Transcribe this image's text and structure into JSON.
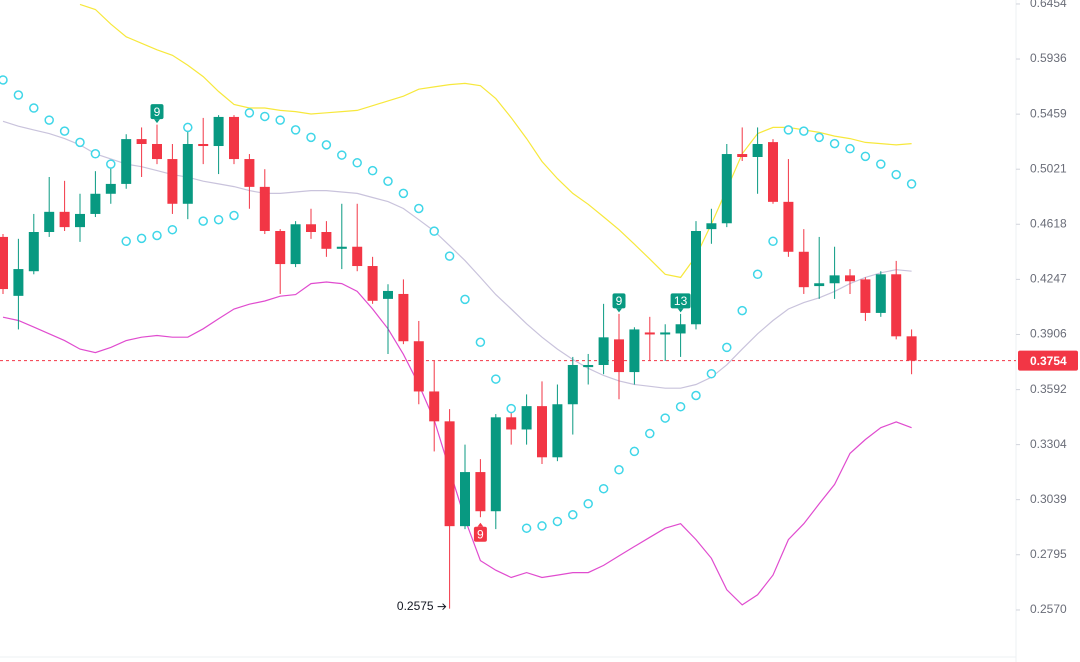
{
  "chart_data": {
    "type": "candlestick",
    "log_scale": true,
    "ylim": [
      0.24,
      0.6493
    ],
    "yticks": [
      0.6454,
      0.5936,
      0.5459,
      0.5021,
      0.4618,
      0.4247,
      0.3906,
      0.3592,
      0.3304,
      0.3039,
      0.2795,
      {
        "value": 0.257,
        "label": "0.2570"
      }
    ],
    "up_color": "#089981",
    "down_color": "#f23645",
    "open": [
      0.453,
      0.4142,
      0.43,
      0.4564,
      0.4706,
      0.4598,
      0.4691,
      0.4837,
      0.491,
      0.5256,
      0.5217,
      0.5099,
      0.4764,
      0.5217,
      0.5201,
      0.5436,
      0.5099,
      0.4888,
      0.4571,
      0.4347,
      0.4618,
      0.4564,
      0.4449,
      0.4463,
      0.4334,
      0.4123,
      0.4154,
      0.3866,
      0.3582,
      0.3423,
      0.2919,
      0.3169,
      0.2986,
      0.3444,
      0.3381,
      0.3503,
      0.3241,
      0.3513,
      0.3717,
      0.3729,
      0.3877,
      0.3689,
      0.3918,
      0.3906,
      0.3912,
      0.3967,
      0.4584,
      0.4625,
      0.5138,
      0.5115,
      0.5232,
      0.4778,
      0.4429,
      0.4204,
      0.4222,
      0.4273,
      0.4247,
      0.4036,
      0.428,
      0.3895
    ],
    "high": [
      0.455,
      0.4517,
      0.4691,
      0.4962,
      0.4933,
      0.4837,
      0.5006,
      0.5084,
      0.5295,
      0.535,
      0.5373,
      0.5217,
      0.5373,
      0.5428,
      0.5451,
      0.5451,
      0.5138,
      0.5021,
      0.4584,
      0.464,
      0.4728,
      0.464,
      0.4764,
      0.4764,
      0.4395,
      0.4216,
      0.4247,
      0.3987,
      0.3752,
      0.3487,
      0.3304,
      0.3232,
      0.3461,
      0.3513,
      0.3566,
      0.3637,
      0.362,
      0.3775,
      0.3792,
      0.4092,
      0.403,
      0.3949,
      0.4012,
      0.3967,
      0.403,
      0.464,
      0.4728,
      0.5217,
      0.535,
      0.535,
      0.5256,
      0.5099,
      0.4584,
      0.453,
      0.4463,
      0.4314,
      0.426,
      0.43,
      0.4368,
      0.3936
    ],
    "low": [
      0.4154,
      0.3936,
      0.428,
      0.453,
      0.4571,
      0.4496,
      0.4669,
      0.4764,
      0.4874,
      0.4962,
      0.506,
      0.4691,
      0.4654,
      0.506,
      0.4984,
      0.506,
      0.4728,
      0.455,
      0.4154,
      0.4327,
      0.4517,
      0.4395,
      0.4314,
      0.43,
      0.4092,
      0.3792,
      0.3849,
      0.3513,
      0.327,
      0.2575,
      0.2906,
      0.2959,
      0.2906,
      0.3304,
      0.3304,
      0.3208,
      0.3222,
      0.3355,
      0.362,
      0.3677,
      0.354,
      0.362,
      0.3752,
      0.3752,
      0.3775,
      0.3936,
      0.4483,
      0.4598,
      0.5084,
      0.4837,
      0.4764,
      0.4395,
      0.4154,
      0.4123,
      0.4123,
      0.4154,
      0.3987,
      0.4012,
      0.3877,
      0.3677
    ],
    "close": [
      0.4185,
      0.4314,
      0.4564,
      0.4706,
      0.4598,
      0.4691,
      0.4837,
      0.491,
      0.5256,
      0.5217,
      0.5099,
      0.4764,
      0.5217,
      0.5201,
      0.5436,
      0.5099,
      0.4888,
      0.4571,
      0.4347,
      0.4618,
      0.4564,
      0.4449,
      0.4463,
      0.4334,
      0.4111,
      0.4173,
      0.3866,
      0.3582,
      0.3423,
      0.2919,
      0.3169,
      0.2986,
      0.3444,
      0.3381,
      0.3503,
      0.3241,
      0.3513,
      0.3729,
      0.3729,
      0.3889,
      0.3689,
      0.3936,
      0.3906,
      0.3918,
      0.3967,
      0.4571,
      0.4625,
      0.5138,
      0.5115,
      0.5217,
      0.4778,
      0.4429,
      0.4197,
      0.4222,
      0.4273,
      0.4235,
      0.4036,
      0.428,
      0.3895,
      0.3754
    ],
    "upper_band": {
      "color": "#f7e83c",
      "values": [
        null,
        null,
        null,
        null,
        null,
        0.645,
        0.64,
        0.626,
        0.614,
        0.608,
        0.602,
        0.597,
        0.588,
        0.578,
        0.565,
        0.554,
        0.551,
        0.551,
        0.549,
        0.548,
        0.546,
        0.547,
        0.548,
        0.549,
        0.553,
        0.557,
        0.561,
        0.567,
        0.569,
        0.571,
        0.572,
        0.57,
        0.559,
        0.543,
        0.526,
        0.508,
        0.495,
        0.484,
        0.476,
        0.467,
        0.458,
        0.448,
        0.438,
        0.428,
        0.426,
        0.44,
        0.462,
        0.487,
        0.514,
        0.53,
        0.535,
        0.535,
        0.533,
        0.531,
        0.528,
        0.526,
        0.523,
        0.522,
        0.521,
        0.522
      ]
    },
    "middle_band": {
      "color": "#c9c3dc",
      "values": [
        0.54,
        0.536,
        0.533,
        0.53,
        0.526,
        0.521,
        0.514,
        0.51,
        0.506,
        0.504,
        0.501,
        0.498,
        0.496,
        0.493,
        0.491,
        0.489,
        0.486,
        0.484,
        0.484,
        0.485,
        0.486,
        0.486,
        0.485,
        0.484,
        0.481,
        0.478,
        0.473,
        0.465,
        0.457,
        0.447,
        0.437,
        0.426,
        0.415,
        0.406,
        0.397,
        0.389,
        0.382,
        0.376,
        0.371,
        0.367,
        0.364,
        0.362,
        0.361,
        0.36,
        0.36,
        0.362,
        0.366,
        0.373,
        0.382,
        0.391,
        0.399,
        0.406,
        0.41,
        0.413,
        0.417,
        0.422,
        0.426,
        0.429,
        0.431,
        0.43
      ]
    },
    "lower_band": {
      "color": "#e04ccf",
      "values": [
        0.401,
        0.399,
        0.395,
        0.391,
        0.387,
        0.382,
        0.38,
        0.383,
        0.387,
        0.389,
        0.39,
        0.389,
        0.389,
        0.394,
        0.4,
        0.406,
        0.409,
        0.411,
        0.414,
        0.415,
        0.422,
        0.423,
        0.422,
        0.417,
        0.406,
        0.394,
        0.379,
        0.362,
        0.343,
        0.318,
        0.295,
        0.277,
        0.273,
        0.27,
        0.272,
        0.27,
        0.271,
        0.272,
        0.272,
        0.275,
        0.279,
        0.283,
        0.287,
        0.291,
        0.293,
        0.286,
        0.278,
        0.265,
        0.259,
        0.263,
        0.271,
        0.286,
        0.293,
        0.302,
        0.311,
        0.326,
        0.333,
        0.339,
        0.342,
        0.339
      ]
    },
    "sar": {
      "color": "#3fd6e8",
      "values": [
        0.575,
        0.562,
        0.551,
        0.541,
        0.532,
        0.523,
        0.514,
        0.506,
        0.45,
        0.452,
        0.454,
        0.458,
        0.535,
        0.464,
        0.465,
        0.468,
        0.547,
        0.544,
        0.541,
        0.533,
        0.527,
        0.521,
        0.513,
        0.507,
        0.501,
        0.493,
        0.484,
        0.473,
        0.457,
        0.44,
        0.412,
        0.386,
        0.365,
        0.349,
        0.291,
        0.292,
        0.294,
        0.297,
        0.302,
        0.309,
        0.318,
        0.327,
        0.336,
        0.344,
        0.35,
        0.356,
        0.368,
        0.383,
        0.405,
        0.428,
        0.45,
        0.533,
        0.532,
        0.527,
        0.522,
        0.518,
        0.512,
        0.506,
        0.498,
        0.491
      ]
    },
    "markers": [
      {
        "index": 10,
        "label": "9",
        "side": "above",
        "color": "#089981"
      },
      {
        "index": 31,
        "label": "9",
        "side": "below",
        "color": "#f23645"
      },
      {
        "index": 40,
        "label": "9",
        "side": "above",
        "color": "#089981"
      },
      {
        "index": 44,
        "label": "13",
        "side": "above",
        "color": "#089981"
      }
    ],
    "last_price": 0.3754,
    "last_price_color": "#f23645"
  }
}
